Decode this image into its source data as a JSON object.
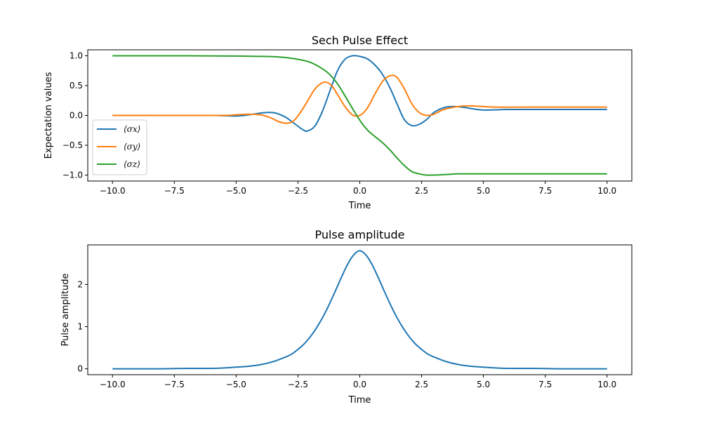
{
  "chart_data": [
    {
      "type": "line",
      "title": "Sech Pulse Effect",
      "xlabel": "Time",
      "ylabel": "Expectation values",
      "xlim": [
        -11,
        11
      ],
      "ylim": [
        -1.1,
        1.1
      ],
      "xticks": [
        -10,
        -7.5,
        -5,
        -2.5,
        0,
        2.5,
        5,
        7.5,
        10
      ],
      "xtick_labels": [
        "−10.0",
        "−7.5",
        "−5.0",
        "−2.5",
        "0.0",
        "2.5",
        "5.0",
        "7.5",
        "10.0"
      ],
      "yticks": [
        -1,
        -0.5,
        0,
        0.5,
        1
      ],
      "ytick_labels": [
        "−1.0",
        "−0.5",
        "0.0",
        "0.5",
        "1.0"
      ],
      "grid": false,
      "legend_position": "lower-left",
      "series": [
        {
          "name": "⟨σx⟩",
          "color": "#1f77b4",
          "x": [
            -10,
            -8,
            -6,
            -5,
            -4.5,
            -4,
            -3.7,
            -3.4,
            -3,
            -2.6,
            -2.3,
            -2.1,
            -1.8,
            -1.5,
            -1.2,
            -0.9,
            -0.6,
            -0.3,
            0,
            0.3,
            0.6,
            0.9,
            1.2,
            1.5,
            1.8,
            2.1,
            2.4,
            2.7,
            3.0,
            3.4,
            3.8,
            4.3,
            5.0,
            6.0,
            7.5,
            10
          ],
          "values": [
            0.0,
            0.0,
            0.0,
            -0.01,
            0.01,
            0.04,
            0.05,
            0.04,
            -0.03,
            -0.15,
            -0.24,
            -0.26,
            -0.17,
            0.08,
            0.42,
            0.75,
            0.94,
            1.0,
            0.99,
            0.95,
            0.85,
            0.7,
            0.48,
            0.2,
            -0.07,
            -0.17,
            -0.15,
            -0.07,
            0.05,
            0.13,
            0.15,
            0.13,
            0.09,
            0.1,
            0.1,
            0.1
          ]
        },
        {
          "name": "⟨σy⟩",
          "color": "#ff7f0e",
          "x": [
            -10,
            -7,
            -5.5,
            -5,
            -4.5,
            -4,
            -3.6,
            -3.3,
            -3.0,
            -2.7,
            -2.4,
            -2.1,
            -1.8,
            -1.5,
            -1.3,
            -1.1,
            -0.9,
            -0.6,
            -0.3,
            0,
            0.3,
            0.6,
            0.9,
            1.1,
            1.3,
            1.5,
            1.8,
            2.1,
            2.4,
            2.7,
            3.0,
            3.4,
            4.0,
            4.5,
            5.5,
            7.5,
            10
          ],
          "values": [
            0.0,
            0.0,
            0.0,
            0.01,
            0.02,
            0.01,
            -0.04,
            -0.1,
            -0.13,
            -0.1,
            0.05,
            0.25,
            0.45,
            0.55,
            0.55,
            0.48,
            0.35,
            0.15,
            0.01,
            0.0,
            0.12,
            0.35,
            0.56,
            0.64,
            0.67,
            0.64,
            0.45,
            0.2,
            0.05,
            0.0,
            0.02,
            0.1,
            0.15,
            0.16,
            0.14,
            0.14,
            0.14
          ]
        },
        {
          "name": "⟨σz⟩",
          "color": "#2ca02c",
          "x": [
            -10,
            -7,
            -5,
            -4,
            -3.5,
            -3,
            -2.5,
            -2,
            -1.5,
            -1.2,
            -0.9,
            -0.6,
            -0.3,
            0,
            0.3,
            0.6,
            0.9,
            1.2,
            1.5,
            1.8,
            2.1,
            2.4,
            2.7,
            3.0,
            3.5,
            4.0,
            5.0,
            7.0,
            10
          ],
          "values": [
            1.0,
            1.0,
            0.995,
            0.99,
            0.985,
            0.97,
            0.94,
            0.89,
            0.78,
            0.68,
            0.53,
            0.33,
            0.12,
            -0.08,
            -0.24,
            -0.35,
            -0.45,
            -0.57,
            -0.71,
            -0.84,
            -0.94,
            -0.98,
            -1.0,
            -1.0,
            -0.99,
            -0.98,
            -0.98,
            -0.98,
            -0.98
          ]
        }
      ]
    },
    {
      "type": "line",
      "title": "Pulse amplitude",
      "xlabel": "Time",
      "ylabel": "Pulse amplitude",
      "xlim": [
        -11,
        11
      ],
      "ylim": [
        -0.14,
        2.94
      ],
      "xticks": [
        -10,
        -7.5,
        -5,
        -2.5,
        0,
        2.5,
        5,
        7.5,
        10
      ],
      "xtick_labels": [
        "−10.0",
        "−7.5",
        "−5.0",
        "−2.5",
        "0.0",
        "2.5",
        "5.0",
        "7.5",
        "10.0"
      ],
      "yticks": [
        0,
        1,
        2
      ],
      "ytick_labels": [
        "0",
        "1",
        "2"
      ],
      "grid": false,
      "series": [
        {
          "color": "#1f77b4",
          "x": [
            -10,
            -9,
            -8,
            -7,
            -6,
            -5.5,
            -5,
            -4.5,
            -4,
            -3.5,
            -3,
            -2.75,
            -2.5,
            -2.25,
            -2,
            -1.75,
            -1.5,
            -1.25,
            -1,
            -0.75,
            -0.5,
            -0.25,
            0,
            0.25,
            0.5,
            0.75,
            1,
            1.25,
            1.5,
            1.75,
            2,
            2.25,
            2.5,
            2.75,
            3,
            3.5,
            4,
            4.5,
            5,
            5.5,
            6,
            7,
            8,
            9,
            10
          ],
          "values": [
            0.0,
            0.0,
            0.0,
            0.01,
            0.01,
            0.02,
            0.04,
            0.06,
            0.1,
            0.17,
            0.28,
            0.35,
            0.46,
            0.59,
            0.76,
            0.97,
            1.22,
            1.51,
            1.83,
            2.16,
            2.47,
            2.7,
            2.8,
            2.7,
            2.47,
            2.16,
            1.83,
            1.51,
            1.22,
            0.97,
            0.76,
            0.59,
            0.46,
            0.35,
            0.28,
            0.17,
            0.1,
            0.06,
            0.04,
            0.02,
            0.01,
            0.01,
            0.0,
            0.0,
            0.0
          ]
        }
      ]
    }
  ]
}
